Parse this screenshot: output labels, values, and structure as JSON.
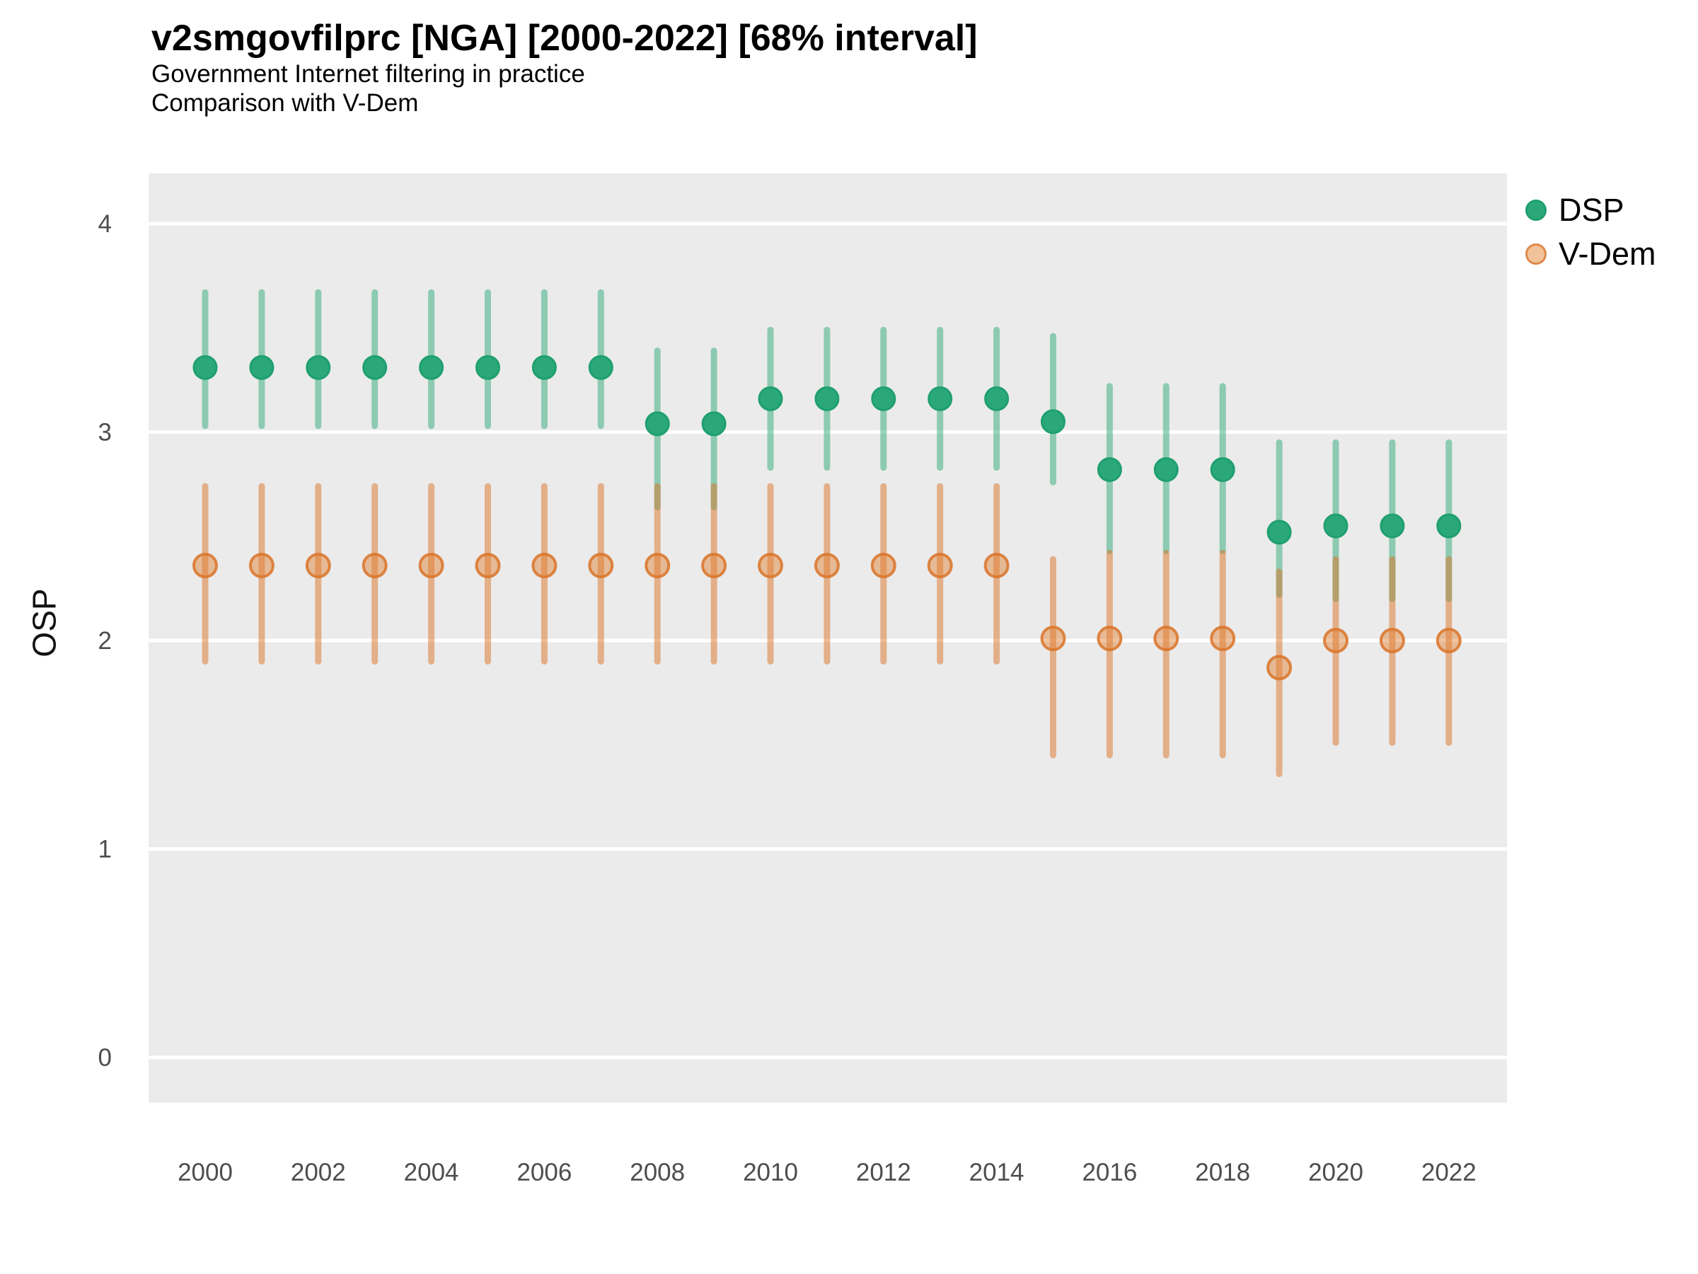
{
  "title": "v2smgovfilprc [NGA] [2000-2022] [68% interval]",
  "subtitle1": "Government Internet filtering in practice",
  "subtitle2": "Comparison with V-Dem",
  "y_axis": {
    "label": "OSP",
    "ticks": [
      0,
      1,
      2,
      3,
      4
    ]
  },
  "x_axis": {
    "tick_years": [
      2000,
      2002,
      2004,
      2006,
      2008,
      2010,
      2012,
      2014,
      2016,
      2018,
      2020,
      2022
    ]
  },
  "legend": [
    {
      "label": "DSP",
      "dot_fill": "#2AA87A",
      "dot_border": "#1F9F6F"
    },
    {
      "label": "V-Dem",
      "dot_fill": "#F2C29B",
      "dot_border": "#DE8A4A"
    }
  ],
  "colors": {
    "panel_background": "#EBEBEB",
    "gridline": "#FFFFFF",
    "tick_text": "#4D4D4D",
    "dsp_point_fill": "#2AA87A",
    "dsp_point_stroke": "#1F9F6F",
    "dsp_bar": "rgba(47,169,121,0.5)",
    "vdem_bar": "rgba(219,115,37,0.5)",
    "vdem_point_fill": "rgba(223,124,45,0.45)",
    "vdem_point_stroke": "rgba(217,115,40,0.85)"
  },
  "chart_data": {
    "type": "scatter",
    "subtype": "pointrange",
    "interval": "68%",
    "title": "v2smgovfilprc [NGA] [2000-2022] [68% interval]",
    "xlabel": "",
    "ylabel": "OSP",
    "ylim": [
      -0.22,
      4.24
    ],
    "grid": "major-horizontal-white-on-gray",
    "legend_position": "right-top",
    "x": [
      2000,
      2001,
      2002,
      2003,
      2004,
      2005,
      2006,
      2007,
      2008,
      2009,
      2010,
      2011,
      2012,
      2013,
      2014,
      2015,
      2016,
      2017,
      2018,
      2019,
      2020,
      2021,
      2022
    ],
    "series": [
      {
        "name": "DSP",
        "values": [
          3.31,
          3.31,
          3.31,
          3.31,
          3.31,
          3.31,
          3.31,
          3.31,
          3.04,
          3.04,
          3.16,
          3.16,
          3.16,
          3.16,
          3.16,
          3.05,
          2.82,
          2.82,
          2.82,
          2.52,
          2.55,
          2.55,
          2.55
        ],
        "lo": [
          3.03,
          3.03,
          3.03,
          3.03,
          3.03,
          3.03,
          3.03,
          3.03,
          2.64,
          2.64,
          2.83,
          2.83,
          2.83,
          2.83,
          2.83,
          2.76,
          2.43,
          2.43,
          2.43,
          2.22,
          2.2,
          2.2,
          2.2
        ],
        "hi": [
          3.67,
          3.67,
          3.67,
          3.67,
          3.67,
          3.67,
          3.67,
          3.67,
          3.39,
          3.39,
          3.49,
          3.49,
          3.49,
          3.49,
          3.49,
          3.46,
          3.22,
          3.22,
          3.22,
          2.95,
          2.95,
          2.95,
          2.95
        ]
      },
      {
        "name": "V-Dem",
        "values": [
          2.36,
          2.36,
          2.36,
          2.36,
          2.36,
          2.36,
          2.36,
          2.36,
          2.36,
          2.36,
          2.36,
          2.36,
          2.36,
          2.36,
          2.36,
          2.01,
          2.01,
          2.01,
          2.01,
          1.87,
          2.0,
          2.0,
          2.0
        ],
        "lo": [
          1.9,
          1.9,
          1.9,
          1.9,
          1.9,
          1.9,
          1.9,
          1.9,
          1.9,
          1.9,
          1.9,
          1.9,
          1.9,
          1.9,
          1.9,
          1.45,
          1.45,
          1.45,
          1.45,
          1.36,
          1.51,
          1.51,
          1.51
        ],
        "hi": [
          2.74,
          2.74,
          2.74,
          2.74,
          2.74,
          2.74,
          2.74,
          2.74,
          2.74,
          2.74,
          2.74,
          2.74,
          2.74,
          2.74,
          2.74,
          2.39,
          2.42,
          2.42,
          2.42,
          2.33,
          2.39,
          2.39,
          2.39
        ]
      }
    ]
  }
}
